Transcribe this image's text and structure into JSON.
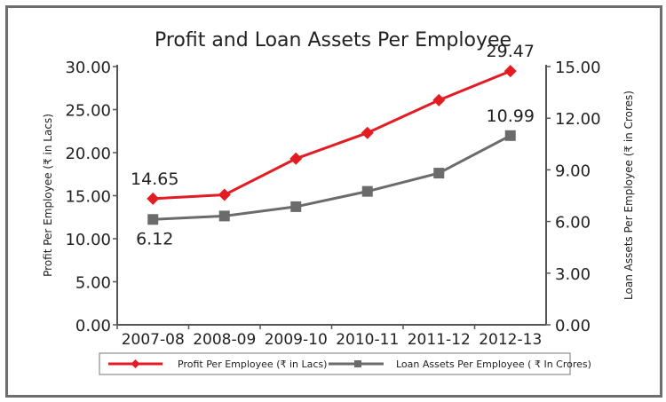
{
  "chart_data": {
    "type": "line",
    "title": "Profit and Loan Assets Per Employee",
    "categories": [
      "2007-08",
      "2008-09",
      "2009-10",
      "2010-11",
      "2011-12",
      "2012-13"
    ],
    "ylabel": "Profit  Per Employee   (₹ in Lacs)",
    "y2label": "Loan  Assets Per Employee  (₹ in Crores)",
    "ylim": [
      0,
      30
    ],
    "y2lim": [
      0,
      15
    ],
    "yticks": [
      "0.00",
      "5.00",
      "10.00",
      "15.00",
      "20.00",
      "25.00",
      "30.00"
    ],
    "y2ticks": [
      "0.00",
      "3.00",
      "6.00",
      "9.00",
      "12.00",
      "15.00"
    ],
    "grid": false,
    "legend_position": "bottom",
    "series": [
      {
        "name": "Profit Per Employee (₹  in Lacs)",
        "axis": "left",
        "color": "#e31b23",
        "marker": "diamond",
        "values": [
          14.65,
          15.1,
          19.3,
          22.3,
          26.1,
          29.47
        ]
      },
      {
        "name": "Loan Assets Per Employee ( ₹  In Crores)",
        "axis": "right",
        "color": "#6b6b6b",
        "marker": "square",
        "values": [
          6.12,
          6.32,
          6.86,
          7.75,
          8.81,
          10.99
        ]
      }
    ],
    "data_labels": [
      {
        "series": 0,
        "index": 0,
        "text": "14.65"
      },
      {
        "series": 0,
        "index": 5,
        "text": "29.47"
      },
      {
        "series": 1,
        "index": 0,
        "text": "6.12"
      },
      {
        "series": 1,
        "index": 5,
        "text": "10.99"
      }
    ]
  }
}
